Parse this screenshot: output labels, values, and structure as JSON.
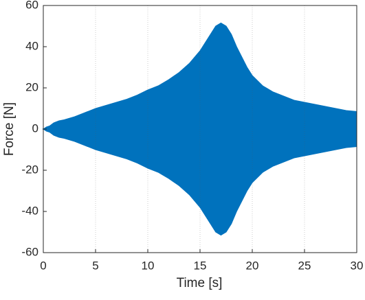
{
  "chart_data": {
    "type": "envelope",
    "xlabel": "Time [s]",
    "ylabel": "Force [N]",
    "color": "#0072bd",
    "x": [
      0,
      0.3,
      0.6,
      1,
      1.5,
      2,
      3,
      4,
      5,
      6,
      7,
      8,
      9,
      10,
      11,
      12,
      13,
      14,
      14.5,
      15,
      15.5,
      16,
      16.5,
      17,
      17.5,
      18,
      18.5,
      19,
      19.5,
      20,
      21,
      22,
      23,
      24,
      25,
      26,
      27,
      28,
      29,
      30
    ],
    "max": [
      0,
      1,
      1.5,
      3,
      4,
      4.5,
      6,
      8,
      10,
      11.5,
      13,
      14.5,
      16.5,
      19,
      21,
      24,
      27.5,
      32,
      35,
      38,
      42,
      46,
      50,
      51.5,
      50,
      46,
      40,
      35,
      30,
      26,
      21,
      18,
      16,
      14,
      13,
      12,
      11,
      10,
      9,
      8.5
    ],
    "min": [
      0,
      -1,
      -1.5,
      -3,
      -4,
      -4.5,
      -6,
      -8,
      -10,
      -11.5,
      -13,
      -14.5,
      -16.5,
      -19,
      -21,
      -24,
      -27.5,
      -32,
      -35,
      -38,
      -42,
      -46,
      -50,
      -51.5,
      -50,
      -46,
      -40,
      -35,
      -30,
      -26,
      -21,
      -18,
      -16,
      -14,
      -13,
      -12,
      -11,
      -10,
      -9,
      -8.5
    ],
    "xlim": [
      0,
      30
    ],
    "ylim": [
      -60,
      60
    ],
    "xticks": [
      0,
      5,
      10,
      15,
      20,
      25,
      30
    ],
    "yticks": [
      -60,
      -40,
      -20,
      0,
      20,
      40,
      60
    ],
    "xgrid": true
  }
}
